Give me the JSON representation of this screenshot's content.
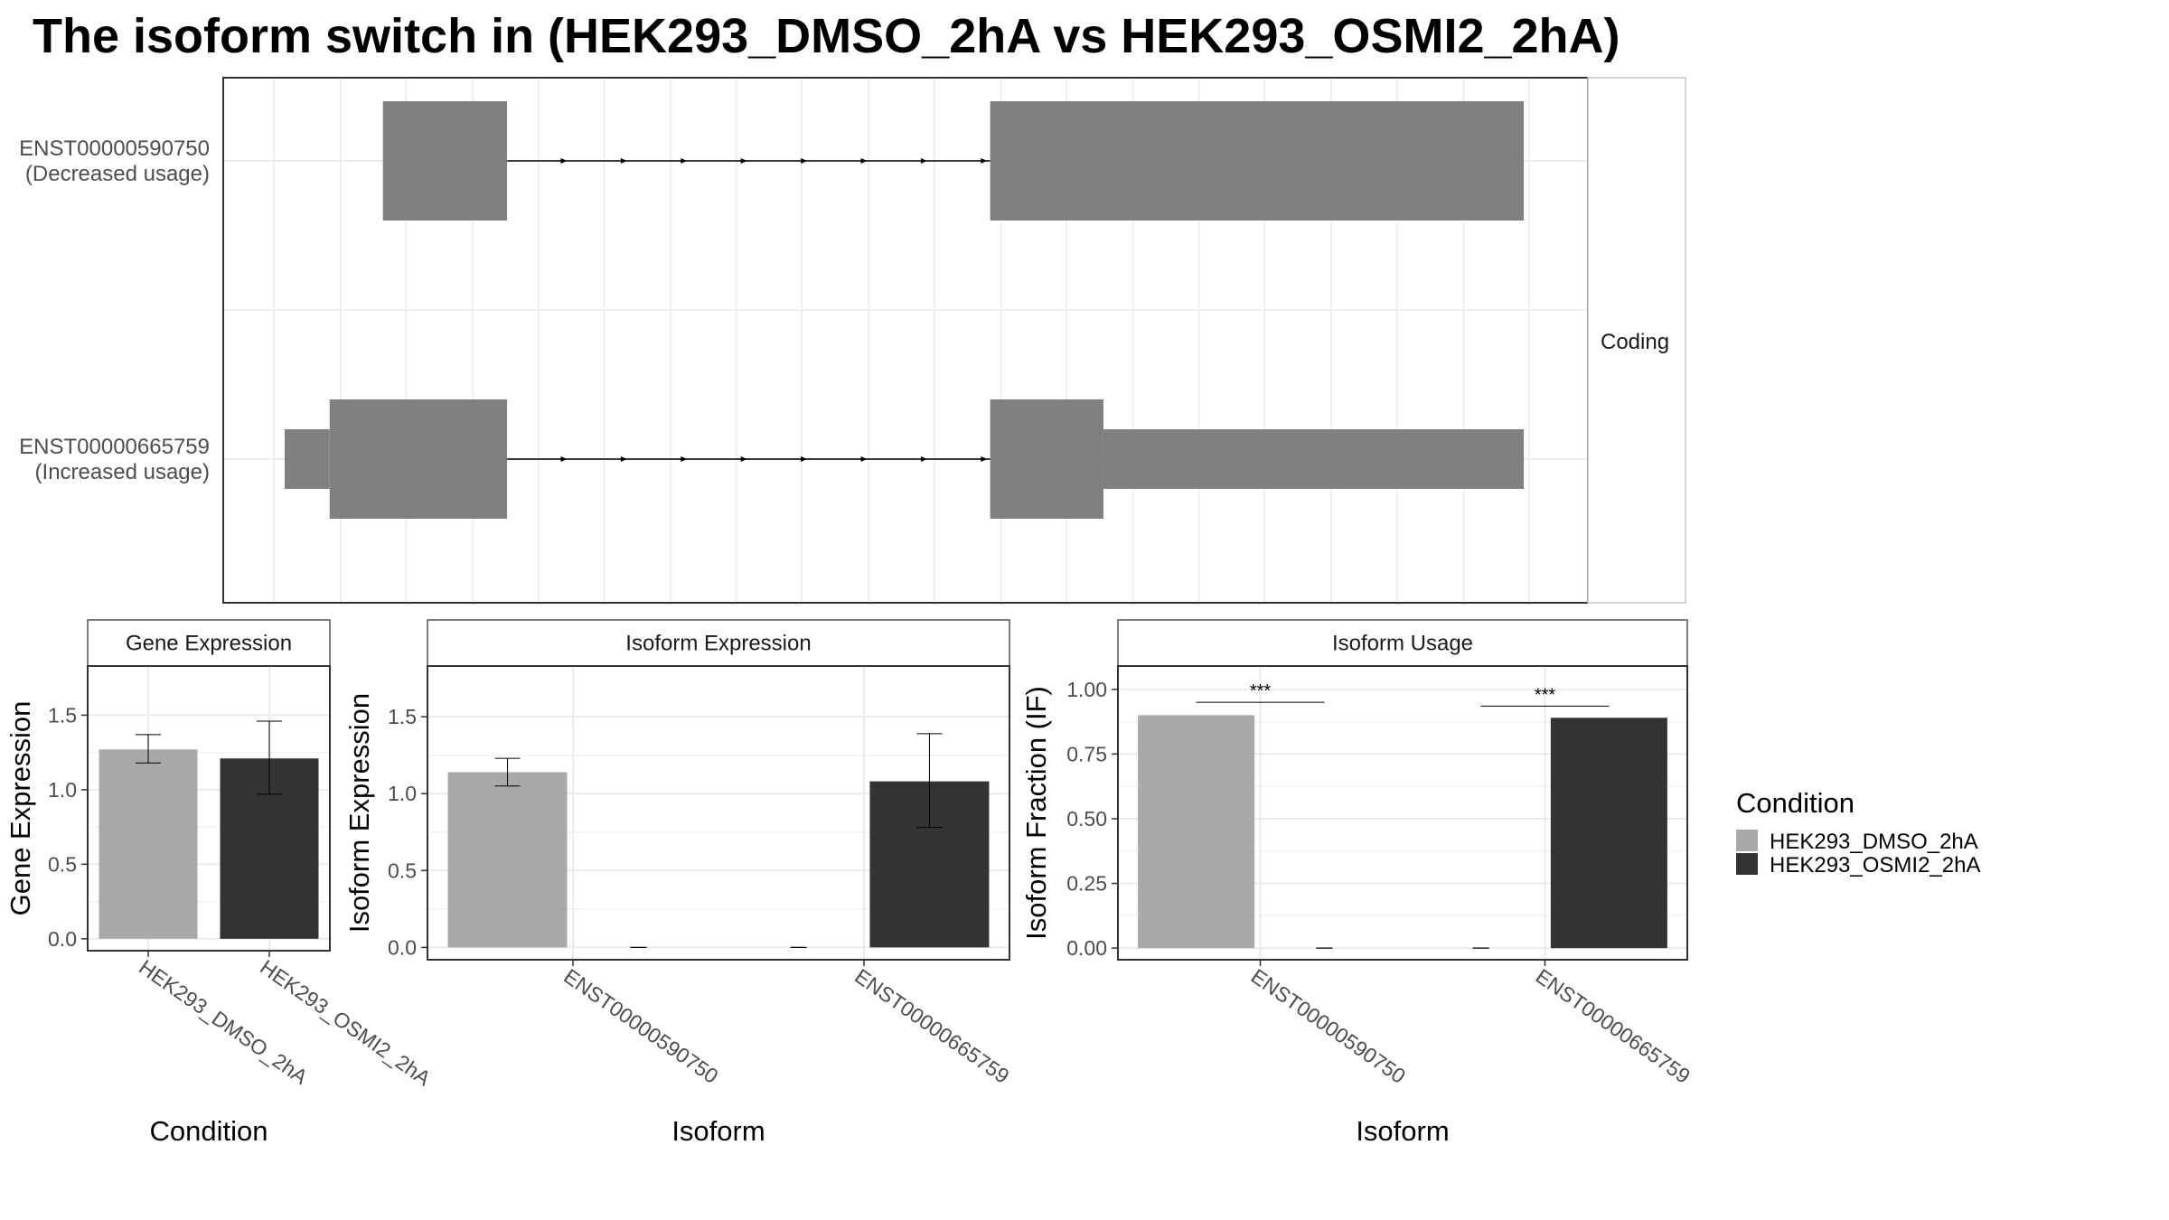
{
  "title": "The isoform switch in  (HEK293_DMSO_2hA vs HEK293_OSMI2_2hA)",
  "colors": {
    "dmso": "#a9a9a9",
    "osmi2": "#333333",
    "exon": "#808080",
    "panel_border": "#333333",
    "grid": "#ebebeb"
  },
  "chart_data": [
    {
      "type": "transcript-structure",
      "facet_label": "Coding",
      "xlim": [
        0,
        100
      ],
      "transcripts": [
        {
          "id": "ENST00000590750",
          "usage_label": "(Decreased usage)",
          "exons": [
            {
              "start": 11.7,
              "end": 20.8,
              "type": "coding"
            },
            {
              "start": 56.2,
              "end": 95.3,
              "type": "coding"
            }
          ],
          "introns": [
            {
              "start": 20.8,
              "end": 56.2
            }
          ]
        },
        {
          "id": "ENST00000665759",
          "usage_label": "(Increased usage)",
          "exons": [
            {
              "start": 4.5,
              "end": 7.8,
              "type": "utr"
            },
            {
              "start": 7.8,
              "end": 20.8,
              "type": "coding"
            },
            {
              "start": 56.2,
              "end": 64.5,
              "type": "coding"
            },
            {
              "start": 64.5,
              "end": 95.3,
              "type": "utr"
            }
          ],
          "introns": [
            {
              "start": 20.8,
              "end": 56.2
            }
          ]
        }
      ]
    },
    {
      "type": "bar",
      "strip": "Gene Expression",
      "xlabel": "Condition",
      "ylabel": "Gene Expression",
      "ylim": [
        -0.08,
        1.83
      ],
      "yticks": [
        0.0,
        0.5,
        1.0,
        1.5
      ],
      "categories": [
        "HEK293_DMSO_2hA",
        "HEK293_OSMI2_2hA"
      ],
      "series": [
        {
          "name": "HEK293_DMSO_2hA",
          "values": [
            1.27,
            null
          ],
          "err_low": [
            1.18,
            null
          ],
          "err_high": [
            1.37,
            null
          ]
        },
        {
          "name": "HEK293_OSMI2_2hA",
          "values": [
            null,
            1.21
          ],
          "err_low": [
            null,
            0.97
          ],
          "err_high": [
            null,
            1.46
          ]
        }
      ]
    },
    {
      "type": "bar",
      "strip": "Isoform Expression",
      "xlabel": "Isoform",
      "ylabel": "Isoform Expression",
      "ylim": [
        -0.08,
        1.83
      ],
      "yticks": [
        0.0,
        0.5,
        1.0,
        1.5
      ],
      "categories": [
        "ENST00000590750",
        "ENST00000665759"
      ],
      "series": [
        {
          "name": "HEK293_DMSO_2hA",
          "values": [
            1.14,
            0.0
          ],
          "err_low": [
            1.05,
            0.0
          ],
          "err_high": [
            1.23,
            0.0
          ]
        },
        {
          "name": "HEK293_OSMI2_2hA",
          "values": [
            0.0,
            1.08
          ],
          "err_low": [
            0.0,
            0.78
          ],
          "err_high": [
            0.0,
            1.39
          ]
        }
      ]
    },
    {
      "type": "bar",
      "strip": "Isoform Usage",
      "xlabel": "Isoform",
      "ylabel": "Isoform Fraction (IF)",
      "ylim": [
        -0.045,
        1.09
      ],
      "yticks": [
        0.0,
        0.25,
        0.5,
        0.75,
        1.0
      ],
      "ytick_labels": [
        "0.00",
        "0.25",
        "0.50",
        "0.75",
        "1.00"
      ],
      "categories": [
        "ENST00000590750",
        "ENST00000665759"
      ],
      "series": [
        {
          "name": "HEK293_DMSO_2hA",
          "values": [
            0.9,
            0.0
          ]
        },
        {
          "name": "HEK293_OSMI2_2hA",
          "values": [
            0.0,
            0.89
          ]
        }
      ],
      "significance": [
        {
          "category": "ENST00000590750",
          "label": "***",
          "y": 0.95
        },
        {
          "category": "ENST00000665759",
          "label": "***",
          "y": 0.935
        }
      ]
    }
  ],
  "legend": {
    "title": "Condition",
    "items": [
      {
        "label": "HEK293_DMSO_2hA",
        "color": "#a9a9a9"
      },
      {
        "label": "HEK293_OSMI2_2hA",
        "color": "#333333"
      }
    ]
  }
}
